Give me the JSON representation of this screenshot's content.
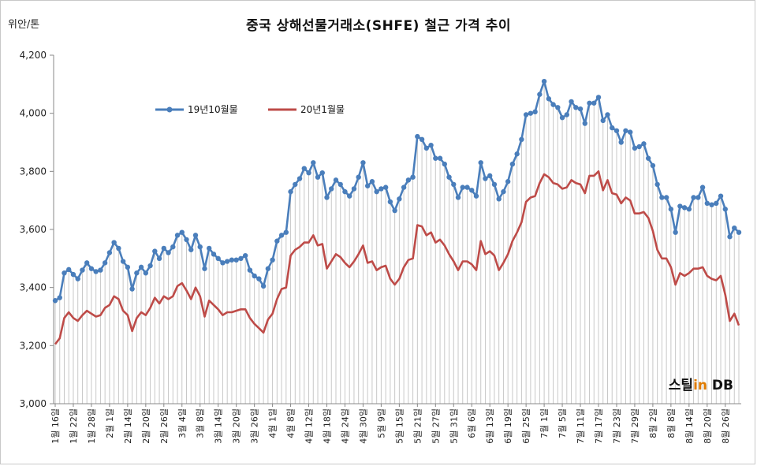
{
  "title": "중국 상해선물거래소(SHFE)  철근 가격 추이",
  "unit_label": "위안/톤",
  "brand": {
    "prefix": "스틸",
    "accent": "in",
    "suffix": " DB"
  },
  "colors": {
    "series1": "#4a7ebb",
    "series2": "#be4b48",
    "grid": "#d9d9d9",
    "dropline": "#c8c8c8"
  },
  "chart_data": {
    "type": "line",
    "title": "중국 상해선물거래소(SHFE)  철근 가격 추이",
    "ylabel": "위안/톤",
    "ylim": [
      3000,
      4200
    ],
    "yticks": [
      3000,
      3200,
      3400,
      3600,
      3800,
      4000,
      4200
    ],
    "ytick_labels": [
      "3,000",
      "3,200",
      "3,400",
      "3,600",
      "3,800",
      "4,000",
      "4,200"
    ],
    "grid": false,
    "drop_lines": true,
    "legend_position": "top-left",
    "x_tick_labels": [
      "1월 16일",
      "1월 22일",
      "1월 28일",
      "2월 1일",
      "2월 14일",
      "2월 20일",
      "2월 26일",
      "3월 4일",
      "3월 8일",
      "3월 14일",
      "3월 20일",
      "3월 26일",
      "4월 1일",
      "4월 8일",
      "4월 12일",
      "4월 18일",
      "4월 24일",
      "4월 30일",
      "5월 9일",
      "5월 15일",
      "5월 21일",
      "5월 27일",
      "5월 31일",
      "6월 6일",
      "6월 13일",
      "6월 19일",
      "6월 25일",
      "7월 1일",
      "7월 5일",
      "7월 11일",
      "7월 17일",
      "7월 23일",
      "7월 29일",
      "8월 2일",
      "8월 8일",
      "8월 14일",
      "8월 20일",
      "8월 26일"
    ],
    "series": [
      {
        "name": "19년10월물",
        "marker": "circle",
        "values": [
          3355,
          3365,
          3450,
          3462,
          3445,
          3430,
          3460,
          3485,
          3465,
          3455,
          3460,
          3485,
          3520,
          3555,
          3535,
          3490,
          3470,
          3395,
          3450,
          3470,
          3450,
          3475,
          3525,
          3500,
          3535,
          3520,
          3540,
          3580,
          3590,
          3565,
          3530,
          3580,
          3540,
          3465,
          3535,
          3515,
          3500,
          3485,
          3490,
          3495,
          3495,
          3500,
          3510,
          3460,
          3440,
          3430,
          3405,
          3465,
          3495,
          3560,
          3580,
          3590,
          3730,
          3755,
          3775,
          3810,
          3795,
          3830,
          3780,
          3795,
          3710,
          3740,
          3770,
          3755,
          3730,
          3715,
          3740,
          3780,
          3830,
          3750,
          3765,
          3730,
          3740,
          3745,
          3695,
          3665,
          3705,
          3745,
          3770,
          3780,
          3920,
          3910,
          3880,
          3890,
          3845,
          3845,
          3825,
          3780,
          3755,
          3710,
          3745,
          3745,
          3735,
          3715,
          3830,
          3775,
          3785,
          3755,
          3705,
          3730,
          3765,
          3825,
          3860,
          3910,
          3995,
          4000,
          4005,
          4065,
          4110,
          4050,
          4030,
          4020,
          3985,
          3995,
          4040,
          4020,
          4015,
          3965,
          4035,
          4035,
          4055,
          3975,
          3995,
          3950,
          3940,
          3900,
          3940,
          3935,
          3880,
          3885,
          3895,
          3845,
          3820,
          3755,
          3710,
          3710,
          3670,
          3590,
          3680,
          3675,
          3670,
          3710,
          3710,
          3745,
          3690,
          3685,
          3690,
          3715,
          3670,
          3575,
          3605,
          3590
        ]
      },
      {
        "name": "20년1월물",
        "marker": "none",
        "values": [
          3205,
          3225,
          3295,
          3315,
          3295,
          3285,
          3305,
          3320,
          3310,
          3300,
          3305,
          3330,
          3340,
          3370,
          3360,
          3320,
          3305,
          3250,
          3295,
          3315,
          3305,
          3330,
          3365,
          3345,
          3370,
          3360,
          3370,
          3405,
          3415,
          3390,
          3360,
          3400,
          3370,
          3300,
          3355,
          3340,
          3325,
          3305,
          3315,
          3315,
          3320,
          3325,
          3325,
          3295,
          3275,
          3260,
          3245,
          3290,
          3310,
          3360,
          3395,
          3400,
          3510,
          3530,
          3540,
          3555,
          3555,
          3580,
          3545,
          3550,
          3465,
          3490,
          3515,
          3505,
          3485,
          3470,
          3490,
          3515,
          3545,
          3485,
          3490,
          3460,
          3470,
          3475,
          3430,
          3410,
          3430,
          3470,
          3495,
          3500,
          3615,
          3610,
          3580,
          3590,
          3555,
          3565,
          3545,
          3515,
          3490,
          3460,
          3490,
          3490,
          3480,
          3460,
          3560,
          3515,
          3525,
          3510,
          3460,
          3485,
          3515,
          3560,
          3590,
          3625,
          3695,
          3710,
          3715,
          3760,
          3790,
          3780,
          3760,
          3755,
          3740,
          3745,
          3770,
          3760,
          3755,
          3725,
          3785,
          3785,
          3800,
          3735,
          3770,
          3725,
          3720,
          3690,
          3710,
          3700,
          3655,
          3655,
          3660,
          3640,
          3595,
          3530,
          3500,
          3500,
          3470,
          3410,
          3450,
          3440,
          3450,
          3465,
          3465,
          3470,
          3440,
          3430,
          3425,
          3440,
          3375,
          3285,
          3310,
          3270
        ]
      }
    ]
  }
}
